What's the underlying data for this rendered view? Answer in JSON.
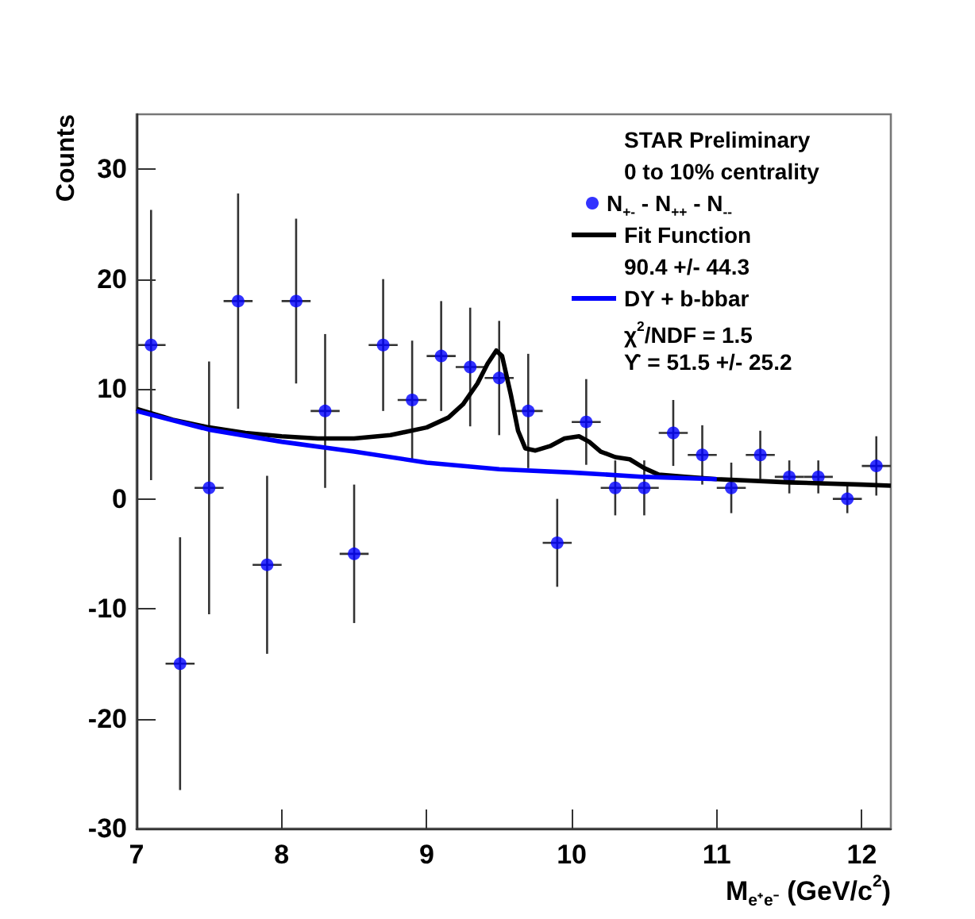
{
  "chart_data": {
    "type": "scatter",
    "xlabel": "M$_{e⁺e⁻}$ (GeV/c$^{2}$)",
    "ylabel": "Counts",
    "annotations": [
      "STAR Preliminary",
      "0 to 10% centrality",
      "90.4 +/- 44.3",
      "χ$^{2}$/NDF = 1.5",
      "ϒ = 51.5 +/- 25.2"
    ],
    "xlim": [
      7,
      12.2
    ],
    "xticks": [
      7,
      8,
      9,
      10,
      11,
      12
    ],
    "ylim": [
      -30,
      35
    ],
    "yticks": [
      -30,
      -20,
      -10,
      0,
      10,
      20,
      30
    ],
    "grid": false,
    "legend": "top right",
    "marker": "circle",
    "series": [
      {
        "name": "N$_{+-}$ - N$_{++}$ - N$_{--}$",
        "color": "#0000ff",
        "x": [
          7.1,
          7.3,
          7.5,
          7.7,
          7.9,
          8.1,
          8.3,
          8.5,
          8.7,
          8.9,
          9.1,
          9.3,
          9.5,
          9.7,
          9.9,
          10.1,
          10.3,
          10.5,
          10.7,
          10.9,
          11.1,
          11.3,
          11.5,
          11.7,
          11.9,
          12.1
        ],
        "values": [
          14,
          -15,
          1,
          18,
          -6,
          18,
          8,
          -5,
          14,
          9,
          13,
          12,
          11,
          8,
          -4,
          7,
          1,
          1,
          6,
          4,
          1,
          4,
          2,
          2,
          0,
          3
        ],
        "errors": [
          12.3,
          11.5,
          11.5,
          9.8,
          8.1,
          7.5,
          7,
          6.3,
          6,
          5.4,
          5,
          5.4,
          5.2,
          5.2,
          4,
          3.9,
          2.5,
          2.5,
          3,
          2.7,
          2.3,
          2.2,
          1.5,
          1.5,
          1.3,
          2.7
        ],
        "xerrors": [
          0.1,
          0.1,
          0.1,
          0.1,
          0.1,
          0.1,
          0.1,
          0.1,
          0.1,
          0.1,
          0.1,
          0.1,
          0.1,
          0.1,
          0.1,
          0.1,
          0.1,
          0.1,
          0.1,
          0.1,
          0.1,
          0.1,
          0.1,
          0.1,
          0.1,
          0.1
        ]
      },
      {
        "name": "Fit Function",
        "type": "line",
        "marker": "none",
        "color": "#000000",
        "x": [
          7,
          7.25,
          7.5,
          7.75,
          8,
          8.25,
          8.5,
          8.75,
          9,
          9.15,
          9.25,
          9.35,
          9.42,
          9.48,
          9.52,
          9.58,
          9.63,
          9.68,
          9.75,
          9.85,
          9.95,
          10.05,
          10.12,
          10.2,
          10.3,
          10.4,
          10.5,
          10.6,
          10.8,
          11,
          11.5,
          12,
          12.2
        ],
        "values": [
          8.2,
          7.2,
          6.5,
          6.0,
          5.7,
          5.5,
          5.5,
          5.8,
          6.5,
          7.4,
          8.6,
          10.5,
          12.3,
          13.5,
          13.0,
          9.5,
          6.2,
          4.6,
          4.4,
          4.8,
          5.5,
          5.7,
          5.2,
          4.3,
          3.8,
          3.6,
          2.8,
          2.2,
          2.0,
          1.8,
          1.5,
          1.3,
          1.2
        ]
      },
      {
        "name": "DY + b-bbar",
        "type": "line",
        "marker": "none",
        "color": "#0000ff",
        "x": [
          7,
          7.5,
          8,
          8.5,
          9,
          9.5,
          10,
          10.5,
          11
        ],
        "values": [
          8.0,
          6.3,
          5.2,
          4.3,
          3.3,
          2.7,
          2.4,
          2.0,
          1.8
        ]
      }
    ]
  }
}
